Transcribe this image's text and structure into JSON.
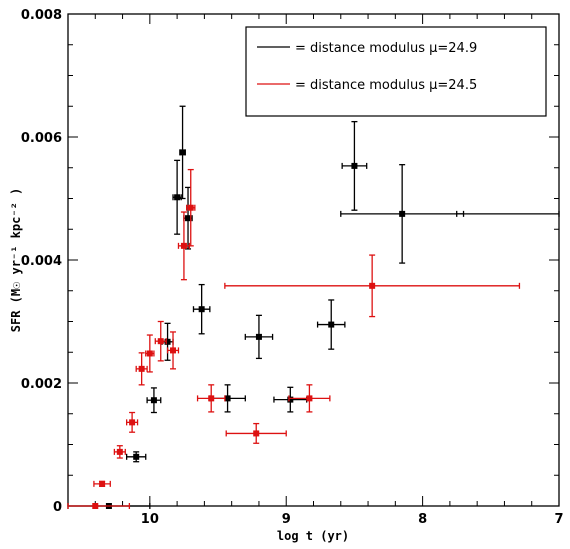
{
  "chart_data": {
    "type": "scatter",
    "xlabel": "log t (yr)",
    "ylabel": "SFR (M☉ yr⁻¹ kpc⁻² )",
    "xlim": [
      10.6,
      7.0
    ],
    "ylim": [
      0,
      0.008
    ],
    "x_ticks": [
      10,
      9,
      8,
      7
    ],
    "x_tick_labels": [
      "10",
      "9",
      "8",
      "7"
    ],
    "y_ticks": [
      0,
      0.002,
      0.004,
      0.006,
      0.008
    ],
    "y_tick_labels": [
      "0",
      "0.002",
      "0.004",
      "0.006",
      "0.008"
    ],
    "legend_position": "top-right",
    "series": [
      {
        "name": "= distance modulus μ=24.9",
        "color": "#000000",
        "points": [
          {
            "x": 10.3,
            "y": 0.0,
            "xerr": 0.3,
            "yerr": 0.0
          },
          {
            "x": 10.1,
            "y": 0.0008,
            "xerr": 0.07,
            "yerr": 8e-05
          },
          {
            "x": 9.97,
            "y": 0.00172,
            "xerr": 0.05,
            "yerr": 0.0002
          },
          {
            "x": 9.87,
            "y": 0.00267,
            "xerr": 0.04,
            "yerr": 0.0003
          },
          {
            "x": 9.8,
            "y": 0.00502,
            "xerr": 0.03,
            "yerr": 0.0006
          },
          {
            "x": 9.76,
            "y": 0.00575,
            "xerr": 0.02,
            "yerr": 0.00075
          },
          {
            "x": 9.72,
            "y": 0.00468,
            "xerr": 0.03,
            "yerr": 0.0005
          },
          {
            "x": 9.62,
            "y": 0.0032,
            "xerr": 0.06,
            "yerr": 0.0004
          },
          {
            "x": 9.43,
            "y": 0.00175,
            "xerr": 0.13,
            "yerr": 0.00022
          },
          {
            "x": 9.2,
            "y": 0.00275,
            "xerr": 0.1,
            "yerr": 0.00035
          },
          {
            "x": 8.97,
            "y": 0.00173,
            "xerr": 0.12,
            "yerr": 0.0002
          },
          {
            "x": 8.67,
            "y": 0.00295,
            "xerr": 0.1,
            "yerr": 0.0004
          },
          {
            "x": 8.5,
            "y": 0.00553,
            "xerr": 0.09,
            "yerr": 0.00072
          },
          {
            "x": 8.15,
            "y": 0.00475,
            "xerr": 0.45,
            "yerr": 0.0008
          },
          {
            "x": 7.0,
            "y": 0.00475,
            "xerr": 0.75,
            "yerr": 0.0
          }
        ]
      },
      {
        "name": "= distance modulus μ=24.5",
        "color": "#dd1111",
        "points": [
          {
            "x": 10.4,
            "y": 0.0,
            "xerr": 0.25,
            "yerr": 0.0
          },
          {
            "x": 10.35,
            "y": 0.00036,
            "xerr": 0.06,
            "yerr": 4e-05
          },
          {
            "x": 10.22,
            "y": 0.00088,
            "xerr": 0.04,
            "yerr": 0.0001
          },
          {
            "x": 10.13,
            "y": 0.00136,
            "xerr": 0.04,
            "yerr": 0.00016
          },
          {
            "x": 10.06,
            "y": 0.00223,
            "xerr": 0.04,
            "yerr": 0.00026
          },
          {
            "x": 10.0,
            "y": 0.00248,
            "xerr": 0.03,
            "yerr": 0.0003
          },
          {
            "x": 9.92,
            "y": 0.00268,
            "xerr": 0.04,
            "yerr": 0.00032
          },
          {
            "x": 9.83,
            "y": 0.00253,
            "xerr": 0.04,
            "yerr": 0.0003
          },
          {
            "x": 9.75,
            "y": 0.00423,
            "xerr": 0.04,
            "yerr": 0.00055
          },
          {
            "x": 9.7,
            "y": 0.00485,
            "xerr": 0.03,
            "yerr": 0.00062
          },
          {
            "x": 9.55,
            "y": 0.00175,
            "xerr": 0.1,
            "yerr": 0.00022
          },
          {
            "x": 9.22,
            "y": 0.00118,
            "xerr": 0.22,
            "yerr": 0.00016
          },
          {
            "x": 8.83,
            "y": 0.00175,
            "xerr": 0.15,
            "yerr": 0.00022
          },
          {
            "x": 8.37,
            "y": 0.00358,
            "xerr": 1.08,
            "yerr": 0.0005
          }
        ]
      }
    ]
  }
}
